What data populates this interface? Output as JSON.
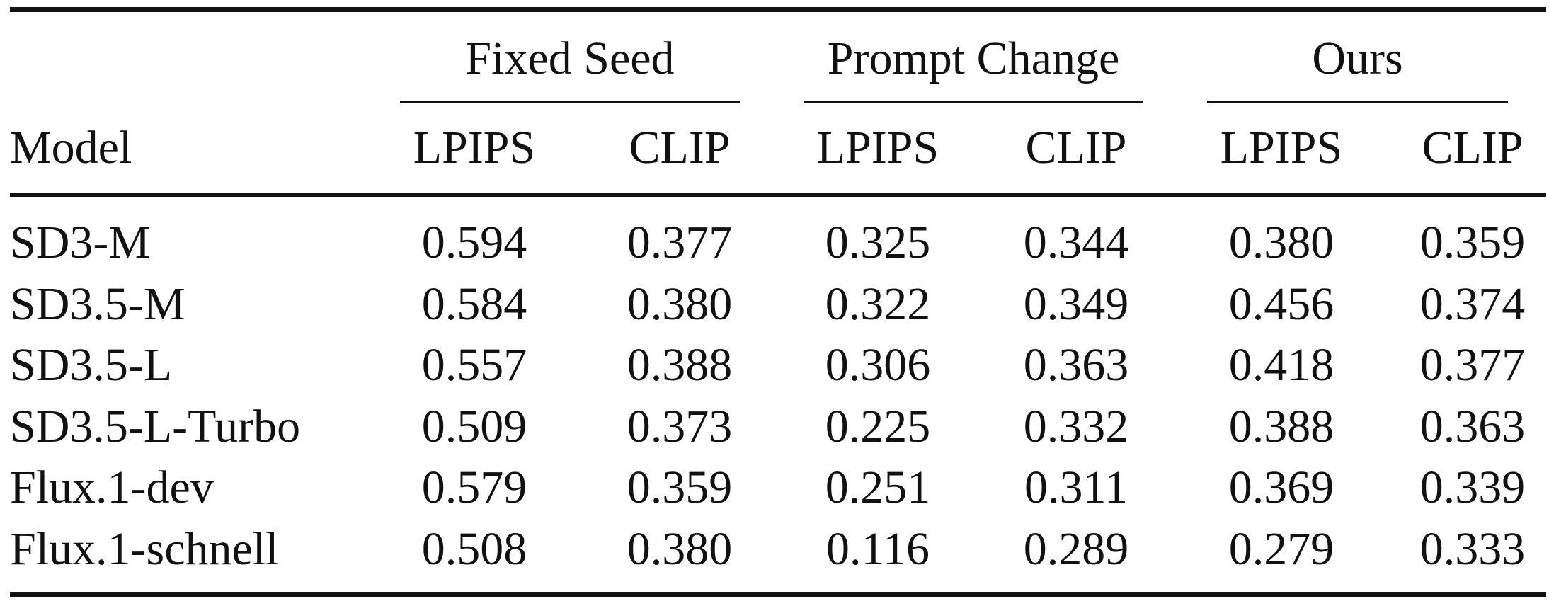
{
  "table": {
    "groups": [
      "Fixed Seed",
      "Prompt Change",
      "Ours"
    ],
    "columns": [
      "Model",
      "LPIPS",
      "CLIP",
      "LPIPS",
      "CLIP",
      "LPIPS",
      "CLIP"
    ],
    "rows": [
      [
        "SD3-M",
        "0.594",
        "0.377",
        "0.325",
        "0.344",
        "0.380",
        "0.359"
      ],
      [
        "SD3.5-M",
        "0.584",
        "0.380",
        "0.322",
        "0.349",
        "0.456",
        "0.374"
      ],
      [
        "SD3.5-L",
        "0.557",
        "0.388",
        "0.306",
        "0.363",
        "0.418",
        "0.377"
      ],
      [
        "SD3.5-L-Turbo",
        "0.509",
        "0.373",
        "0.225",
        "0.332",
        "0.388",
        "0.363"
      ],
      [
        "Flux.1-dev",
        "0.579",
        "0.359",
        "0.251",
        "0.311",
        "0.369",
        "0.339"
      ],
      [
        "Flux.1-schnell",
        "0.508",
        "0.380",
        "0.116",
        "0.289",
        "0.279",
        "0.333"
      ]
    ]
  }
}
